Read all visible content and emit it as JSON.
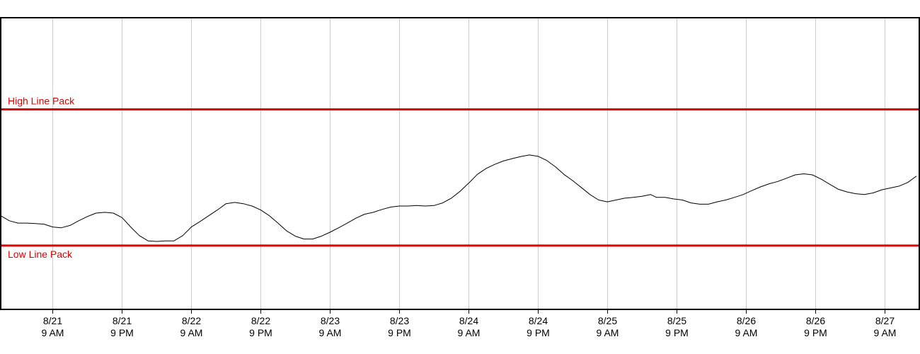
{
  "chart_data": {
    "type": "line",
    "title": "",
    "xlabel": "",
    "ylabel": "",
    "grid": true,
    "x_ticks": [
      {
        "hours": 9,
        "line1": "8/21",
        "line2": "9 AM"
      },
      {
        "hours": 21,
        "line1": "8/21",
        "line2": "9 PM"
      },
      {
        "hours": 33,
        "line1": "8/22",
        "line2": "9 AM"
      },
      {
        "hours": 45,
        "line1": "8/22",
        "line2": "9 PM"
      },
      {
        "hours": 57,
        "line1": "8/23",
        "line2": "9 AM"
      },
      {
        "hours": 69,
        "line1": "8/23",
        "line2": "9 PM"
      },
      {
        "hours": 81,
        "line1": "8/24",
        "line2": "9 AM"
      },
      {
        "hours": 93,
        "line1": "8/24",
        "line2": "9 PM"
      },
      {
        "hours": 105,
        "line1": "8/25",
        "line2": "9 AM"
      },
      {
        "hours": 117,
        "line1": "8/25",
        "line2": "9 PM"
      },
      {
        "hours": 129,
        "line1": "8/26",
        "line2": "9 AM"
      },
      {
        "hours": 141,
        "line1": "8/26",
        "line2": "9 PM"
      },
      {
        "hours": 153,
        "line1": "8/27",
        "line2": "9 AM"
      }
    ],
    "x_range": [
      0,
      159
    ],
    "y_range": [
      0,
      100
    ],
    "reference_lines": [
      {
        "label": "High Line Pack",
        "value": 75,
        "color": "#e00000"
      },
      {
        "label": "Low Line Pack",
        "value": 23,
        "color": "#e00000"
      }
    ],
    "series": [
      {
        "color": "#000000",
        "points": [
          [
            0,
            34.4
          ],
          [
            1.5,
            32.5
          ],
          [
            3,
            31.6
          ],
          [
            4.5,
            31.6
          ],
          [
            6,
            31.4
          ],
          [
            7.5,
            31.2
          ],
          [
            9,
            30.1
          ],
          [
            10.5,
            29.8
          ],
          [
            12,
            30.7
          ],
          [
            13.5,
            32.5
          ],
          [
            15,
            34.1
          ],
          [
            16.5,
            35.4
          ],
          [
            18,
            35.7
          ],
          [
            19.5,
            35.4
          ],
          [
            21,
            33.7
          ],
          [
            22.5,
            30.1
          ],
          [
            24,
            26.8
          ],
          [
            25.5,
            24.8
          ],
          [
            27,
            24.6
          ],
          [
            28.5,
            24.8
          ],
          [
            30,
            24.8
          ],
          [
            31.5,
            26.8
          ],
          [
            33,
            30.1
          ],
          [
            34.5,
            32.2
          ],
          [
            36,
            34.4
          ],
          [
            37.5,
            36.6
          ],
          [
            39,
            39.0
          ],
          [
            40.5,
            39.5
          ],
          [
            42,
            39.0
          ],
          [
            43.5,
            38.1
          ],
          [
            45,
            36.6
          ],
          [
            46.5,
            34.4
          ],
          [
            48,
            31.6
          ],
          [
            49.5,
            28.6
          ],
          [
            51,
            26.6
          ],
          [
            52.5,
            25.5
          ],
          [
            54,
            25.5
          ],
          [
            55.5,
            26.6
          ],
          [
            57,
            28.1
          ],
          [
            58.5,
            29.8
          ],
          [
            60,
            31.6
          ],
          [
            61.5,
            33.5
          ],
          [
            63,
            35.0
          ],
          [
            64.5,
            35.7
          ],
          [
            66,
            36.8
          ],
          [
            67.5,
            37.7
          ],
          [
            69,
            38.1
          ],
          [
            70.5,
            38.1
          ],
          [
            72,
            38.3
          ],
          [
            73.5,
            38.1
          ],
          [
            75,
            38.3
          ],
          [
            76.5,
            39.3
          ],
          [
            78,
            41.1
          ],
          [
            79.5,
            43.7
          ],
          [
            81,
            46.8
          ],
          [
            82.5,
            50.2
          ],
          [
            84,
            52.4
          ],
          [
            85.5,
            54.0
          ],
          [
            87,
            55.3
          ],
          [
            88.5,
            56.2
          ],
          [
            90,
            57.0
          ],
          [
            91.5,
            57.6
          ],
          [
            93,
            57.1
          ],
          [
            94.5,
            55.5
          ],
          [
            96,
            53.1
          ],
          [
            97.5,
            50.2
          ],
          [
            99,
            47.8
          ],
          [
            100.5,
            45.2
          ],
          [
            102,
            42.5
          ],
          [
            103.5,
            40.4
          ],
          [
            105,
            39.7
          ],
          [
            106.5,
            40.4
          ],
          [
            108,
            41.1
          ],
          [
            109.5,
            41.4
          ],
          [
            111,
            41.8
          ],
          [
            112.5,
            42.5
          ],
          [
            113.5,
            41.4
          ],
          [
            115,
            41.4
          ],
          [
            116.5,
            40.8
          ],
          [
            118,
            40.4
          ],
          [
            119.5,
            39.3
          ],
          [
            121,
            38.8
          ],
          [
            122.5,
            38.8
          ],
          [
            124,
            39.7
          ],
          [
            125.5,
            40.4
          ],
          [
            127,
            41.4
          ],
          [
            128.5,
            42.5
          ],
          [
            130,
            44.0
          ],
          [
            131.5,
            45.4
          ],
          [
            133,
            46.6
          ],
          [
            134.5,
            47.5
          ],
          [
            136,
            48.7
          ],
          [
            137.5,
            50.0
          ],
          [
            139,
            50.4
          ],
          [
            140.5,
            50.0
          ],
          [
            142,
            48.4
          ],
          [
            143.5,
            46.4
          ],
          [
            145,
            44.5
          ],
          [
            146.5,
            43.5
          ],
          [
            148,
            42.8
          ],
          [
            149.5,
            42.5
          ],
          [
            151,
            43.1
          ],
          [
            152.5,
            44.3
          ],
          [
            154,
            45.0
          ],
          [
            155.5,
            45.7
          ],
          [
            157,
            47.1
          ],
          [
            158.5,
            49.5
          ]
        ]
      }
    ]
  }
}
